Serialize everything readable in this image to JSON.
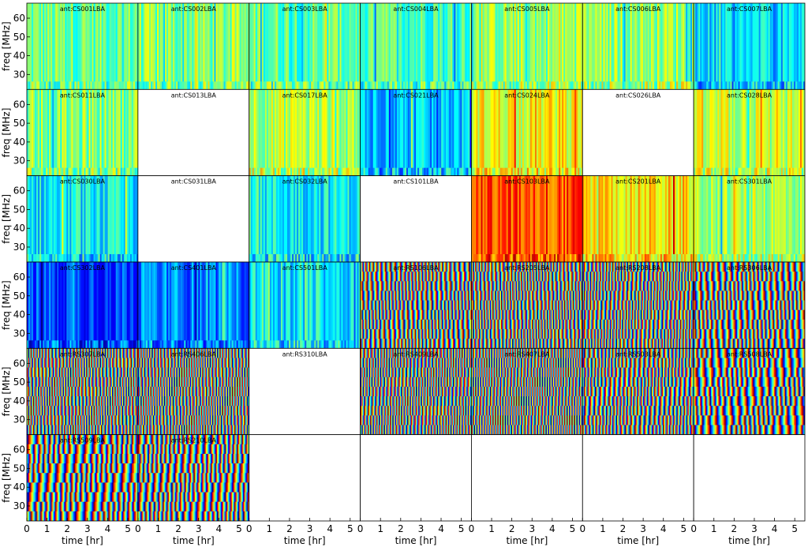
{
  "chart_data": {
    "type": "heatmap",
    "grid": {
      "rows": 6,
      "cols": 7
    },
    "xlabel": "time [hr]",
    "ylabel": "freq [MHz]",
    "xlim": [
      0,
      5.5
    ],
    "ylim": [
      22,
      68
    ],
    "xticks": [
      0,
      1,
      2,
      3,
      4,
      5
    ],
    "yticks": [
      30,
      40,
      50,
      60
    ],
    "panels": [
      {
        "row": 0,
        "col": 0,
        "title": "ant:CS001LBA",
        "has_data": true,
        "pattern": "smooth",
        "level": 0.48
      },
      {
        "row": 0,
        "col": 1,
        "title": "ant:CS002LBA",
        "has_data": true,
        "pattern": "smooth",
        "level": 0.5
      },
      {
        "row": 0,
        "col": 2,
        "title": "ant:CS003LBA",
        "has_data": true,
        "pattern": "smooth",
        "level": 0.47
      },
      {
        "row": 0,
        "col": 3,
        "title": "ant:CS004LBA",
        "has_data": true,
        "pattern": "smooth",
        "level": 0.45
      },
      {
        "row": 0,
        "col": 4,
        "title": "ant:CS005LBA",
        "has_data": true,
        "pattern": "smooth",
        "level": 0.52
      },
      {
        "row": 0,
        "col": 5,
        "title": "ant:CS006LBA",
        "has_data": true,
        "pattern": "smooth",
        "level": 0.53
      },
      {
        "row": 0,
        "col": 6,
        "title": "ant:CS007LBA",
        "has_data": true,
        "pattern": "smooth",
        "level": 0.33
      },
      {
        "row": 1,
        "col": 0,
        "title": "ant:CS011LBA",
        "has_data": true,
        "pattern": "smooth",
        "level": 0.5
      },
      {
        "row": 1,
        "col": 1,
        "title": "ant:CS013LBA",
        "has_data": false,
        "pattern": "none",
        "level": 0
      },
      {
        "row": 1,
        "col": 2,
        "title": "ant:CS017LBA",
        "has_data": true,
        "pattern": "smooth",
        "level": 0.55
      },
      {
        "row": 1,
        "col": 3,
        "title": "ant:CS021LBA",
        "has_data": true,
        "pattern": "smooth",
        "level": 0.32
      },
      {
        "row": 1,
        "col": 4,
        "title": "ant:CS024LBA",
        "has_data": true,
        "pattern": "smooth",
        "level": 0.62
      },
      {
        "row": 1,
        "col": 5,
        "title": "ant:CS026LBA",
        "has_data": false,
        "pattern": "none",
        "level": 0
      },
      {
        "row": 1,
        "col": 6,
        "title": "ant:CS028LBA",
        "has_data": true,
        "pattern": "smooth",
        "level": 0.56
      },
      {
        "row": 2,
        "col": 0,
        "title": "ant:CS030LBA",
        "has_data": true,
        "pattern": "smooth",
        "level": 0.36
      },
      {
        "row": 2,
        "col": 1,
        "title": "ant:CS031LBA",
        "has_data": false,
        "pattern": "none",
        "level": 0
      },
      {
        "row": 2,
        "col": 2,
        "title": "ant:CS032LBA",
        "has_data": true,
        "pattern": "smooth",
        "level": 0.37
      },
      {
        "row": 2,
        "col": 3,
        "title": "ant:CS101LBA",
        "has_data": false,
        "pattern": "none",
        "level": 0
      },
      {
        "row": 2,
        "col": 4,
        "title": "ant:CS103LBA",
        "has_data": true,
        "pattern": "smooth",
        "level": 0.8
      },
      {
        "row": 2,
        "col": 5,
        "title": "ant:CS201LBA",
        "has_data": true,
        "pattern": "smooth",
        "level": 0.65
      },
      {
        "row": 2,
        "col": 6,
        "title": "ant:CS301LBA",
        "has_data": true,
        "pattern": "smooth",
        "level": 0.54
      },
      {
        "row": 3,
        "col": 0,
        "title": "ant:CS302LBA",
        "has_data": true,
        "pattern": "smooth",
        "level": 0.2
      },
      {
        "row": 3,
        "col": 1,
        "title": "ant:CS401LBA",
        "has_data": true,
        "pattern": "smooth",
        "level": 0.25
      },
      {
        "row": 3,
        "col": 2,
        "title": "ant:CS501LBA",
        "has_data": true,
        "pattern": "smooth",
        "level": 0.36
      },
      {
        "row": 3,
        "col": 3,
        "title": "ant:RS106LBA",
        "has_data": true,
        "pattern": "fringe",
        "level": 1.6
      },
      {
        "row": 3,
        "col": 4,
        "title": "ant:RS205LBA",
        "has_data": true,
        "pattern": "fringe",
        "level": 1.9
      },
      {
        "row": 3,
        "col": 5,
        "title": "ant:RS208LBA",
        "has_data": true,
        "pattern": "fringe",
        "level": 3.4
      },
      {
        "row": 3,
        "col": 6,
        "title": "ant:RS306LBA",
        "has_data": true,
        "pattern": "fringe",
        "level": 1.3
      },
      {
        "row": 4,
        "col": 0,
        "title": "ant:RS307LBA",
        "has_data": true,
        "pattern": "fringe",
        "level": 2.1
      },
      {
        "row": 4,
        "col": 1,
        "title": "ant:RS406LBA",
        "has_data": true,
        "pattern": "fringe",
        "level": 2.2
      },
      {
        "row": 4,
        "col": 2,
        "title": "ant:RS310LBA",
        "has_data": false,
        "pattern": "none",
        "level": 0
      },
      {
        "row": 4,
        "col": 3,
        "title": "ant:RS409LBA",
        "has_data": true,
        "pattern": "fringe",
        "level": 3.2
      },
      {
        "row": 4,
        "col": 4,
        "title": "ant:RS407LBA",
        "has_data": true,
        "pattern": "fringe",
        "level": 3.0
      },
      {
        "row": 4,
        "col": 5,
        "title": "ant:RS503LBA",
        "has_data": true,
        "pattern": "fringe",
        "level": 3.6
      },
      {
        "row": 4,
        "col": 6,
        "title": "ant:RS508LBA",
        "has_data": true,
        "pattern": "fringe",
        "level": 1.1
      },
      {
        "row": 5,
        "col": 0,
        "title": "ant:RS509LBA",
        "has_data": true,
        "pattern": "fringe",
        "level": 4.2
      },
      {
        "row": 5,
        "col": 1,
        "title": "ant:RS210LBA",
        "has_data": true,
        "pattern": "fringe",
        "level": 4.0
      },
      {
        "row": 5,
        "col": 2,
        "title": "",
        "has_data": false,
        "pattern": "none",
        "level": 0
      },
      {
        "row": 5,
        "col": 3,
        "title": "",
        "has_data": false,
        "pattern": "none",
        "level": 0
      },
      {
        "row": 5,
        "col": 4,
        "title": "",
        "has_data": false,
        "pattern": "none",
        "level": 0
      },
      {
        "row": 5,
        "col": 5,
        "title": "",
        "has_data": false,
        "pattern": "none",
        "level": 0
      },
      {
        "row": 5,
        "col": 6,
        "title": "",
        "has_data": false,
        "pattern": "none",
        "level": 0
      }
    ],
    "colormap": "jet",
    "grid_lines": false,
    "legend": "none"
  }
}
